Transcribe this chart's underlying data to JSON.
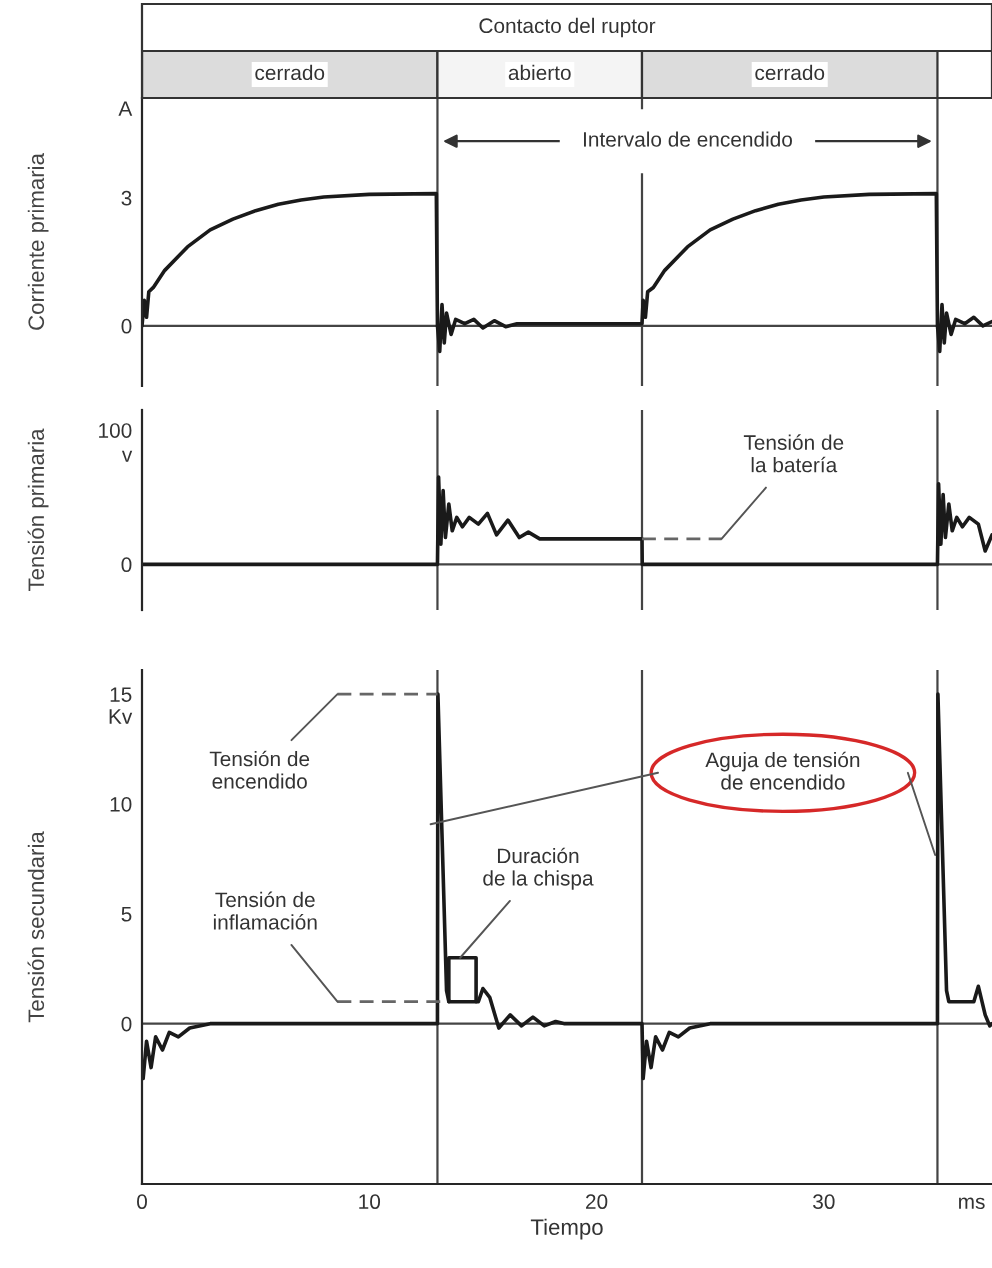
{
  "chart_data": [
    {
      "type": "line",
      "title": "Contacto del ruptor",
      "ylabel": "Corriente primaria",
      "xlim": [
        0,
        37.4
      ],
      "xticks": [
        0,
        10,
        20,
        30
      ],
      "ylim": [
        -1.41,
        5.34
      ],
      "yticks": [
        0,
        3,
        {
          "value": 5.1,
          "label": "A"
        }
      ],
      "tick_labels": "y",
      "grid": false,
      "legend": false,
      "ref_lines": [
        {
          "axis": "x",
          "value": 13
        },
        {
          "axis": "x",
          "value": 22
        },
        {
          "axis": "x",
          "value": 35
        },
        {
          "axis": "y",
          "value": 0
        }
      ],
      "annotations": [
        "cerrado",
        "abierto",
        "cerrado",
        "Intervalo de encendido"
      ],
      "series": [
        {
          "color": "#1a1a1a",
          "x": [
            0,
            0.1,
            0.2,
            0.3,
            0.5,
            1,
            2,
            3,
            4,
            5,
            6,
            7,
            8,
            10,
            12.95,
            13,
            13.1,
            13.2,
            13.3,
            13.4,
            13.6,
            13.8,
            14.2,
            14.6,
            15.0,
            15.5,
            16,
            16.5,
            17,
            22,
            22.05,
            22.15,
            22.25,
            22.5,
            23,
            24,
            25,
            26,
            27,
            28,
            29,
            30,
            32,
            34.95,
            35,
            35.1,
            35.2,
            35.3,
            35.4,
            35.6,
            35.8,
            36.2,
            36.6,
            37,
            37.4
          ],
          "values": [
            0,
            0.6,
            0.2,
            0.8,
            0.9,
            1.3,
            1.85,
            2.25,
            2.5,
            2.7,
            2.85,
            2.95,
            3.02,
            3.08,
            3.1,
            0,
            -0.6,
            0.5,
            -0.4,
            0.3,
            -0.2,
            0.15,
            0.05,
            0.15,
            -0.05,
            0.12,
            -0.02,
            0.05,
            0.05,
            0.05,
            0.6,
            0.2,
            0.8,
            0.9,
            1.3,
            1.85,
            2.25,
            2.5,
            2.7,
            2.85,
            2.95,
            3.02,
            3.08,
            3.1,
            0,
            -0.6,
            0.5,
            -0.4,
            0.3,
            -0.2,
            0.15,
            0.05,
            0.2,
            0.0,
            0.1
          ]
        }
      ]
    },
    {
      "type": "line",
      "ylabel": "Tensión primaria",
      "xlim": [
        0,
        37.4
      ],
      "xticks": [
        0,
        10,
        20,
        30
      ],
      "ylim": [
        -34,
        115
      ],
      "yticks": [
        0,
        100,
        {
          "value": 82,
          "label": "v"
        }
      ],
      "tick_labels": "y",
      "grid": false,
      "legend": false,
      "ref_lines": [
        {
          "axis": "x",
          "value": 13
        },
        {
          "axis": "x",
          "value": 22
        },
        {
          "axis": "x",
          "value": 35
        },
        {
          "axis": "y",
          "value": 0
        }
      ],
      "annotations": [
        {
          "text": "Tensión de\nla batería",
          "x": 25.5,
          "y": 19
        }
      ],
      "series": [
        {
          "color": "#1a1a1a",
          "x": [
            0,
            13,
            13.05,
            13.15,
            13.25,
            13.35,
            13.5,
            13.65,
            13.85,
            14.1,
            14.4,
            14.8,
            15.2,
            15.6,
            16.1,
            16.6,
            17.0,
            17.5,
            22,
            22.01,
            35,
            35.05,
            35.15,
            35.25,
            35.35,
            35.5,
            35.65,
            35.85,
            36.1,
            36.4,
            36.8,
            37.1,
            37.4
          ],
          "values": [
            0,
            0,
            65,
            15,
            55,
            20,
            45,
            25,
            35,
            28,
            35,
            30,
            38,
            22,
            33,
            20,
            24,
            19,
            19,
            0,
            0,
            60,
            15,
            52,
            20,
            45,
            25,
            35,
            28,
            35,
            30,
            10,
            22
          ]
        },
        {
          "color": "#666666",
          "line_style": "dashed",
          "x": [
            22,
            25.5
          ],
          "values": [
            19,
            19
          ]
        }
      ]
    },
    {
      "type": "line",
      "ylabel": "Tensión secundaria",
      "xlabel": "Tiempo",
      "xlim": [
        0,
        37.4
      ],
      "xticks": [
        0,
        10,
        20,
        30,
        {
          "value": 36.5,
          "label": "ms"
        }
      ],
      "ylim": [
        -7.3,
        16.1
      ],
      "yticks": [
        0,
        5,
        10,
        15,
        {
          "value": 14,
          "label": "Kv"
        }
      ],
      "grid": false,
      "legend": false,
      "ref_lines": [
        {
          "axis": "x",
          "value": 13
        },
        {
          "axis": "x",
          "value": 22
        },
        {
          "axis": "x",
          "value": 35
        },
        {
          "axis": "y",
          "value": 0
        }
      ],
      "annotations": [
        {
          "text": "Tensión de\nencendido",
          "x": 8.6,
          "y": 15
        },
        {
          "text": "Tensión de\ninflamación",
          "x": 8.6,
          "y": 1
        },
        {
          "text": "Duración\nde la chispa",
          "x": 14,
          "y": 3
        },
        "Aguja de tensión\nde encendido"
      ],
      "series": [
        {
          "color": "#1a1a1a",
          "x": [
            0,
            0.05,
            0.2,
            0.4,
            0.6,
            0.9,
            1.2,
            1.6,
            2.1,
            3,
            13,
            13.02,
            13.4,
            13.5,
            14.8,
            15,
            15.3,
            15.7,
            16.2,
            16.7,
            17.2,
            17.7,
            18.2,
            18.6,
            22,
            22.05,
            22.2,
            22.4,
            22.6,
            22.9,
            23.2,
            23.6,
            24.1,
            25,
            35,
            35.02,
            35.4,
            35.5,
            36.6,
            36.8,
            37.1,
            37.3,
            37.4
          ],
          "values": [
            -2.5,
            -2.5,
            -0.8,
            -2,
            -0.6,
            -1.2,
            -0.4,
            -0.6,
            -0.2,
            0,
            0,
            15,
            1.5,
            1,
            1,
            1.6,
            1.2,
            -0.2,
            0.4,
            -0.1,
            0.3,
            -0.1,
            0.1,
            0,
            0,
            -2.5,
            -0.8,
            -2,
            -0.6,
            -1.2,
            -0.4,
            -0.6,
            -0.2,
            0,
            0,
            15,
            1.5,
            1,
            1,
            1.7,
            0.4,
            -0.1,
            0
          ]
        },
        {
          "color": "#666666",
          "line_style": "dashed",
          "x": [
            8.6,
            13
          ],
          "values": [
            15,
            15
          ]
        },
        {
          "color": "#666666",
          "line_style": "dashed",
          "x": [
            8.6,
            13.5
          ],
          "values": [
            1,
            1
          ]
        },
        {
          "color": "#1a1a1a",
          "x": [
            13.5,
            13.5,
            14.7,
            14.7
          ],
          "values": [
            1,
            3,
            3,
            1
          ]
        }
      ]
    }
  ]
}
